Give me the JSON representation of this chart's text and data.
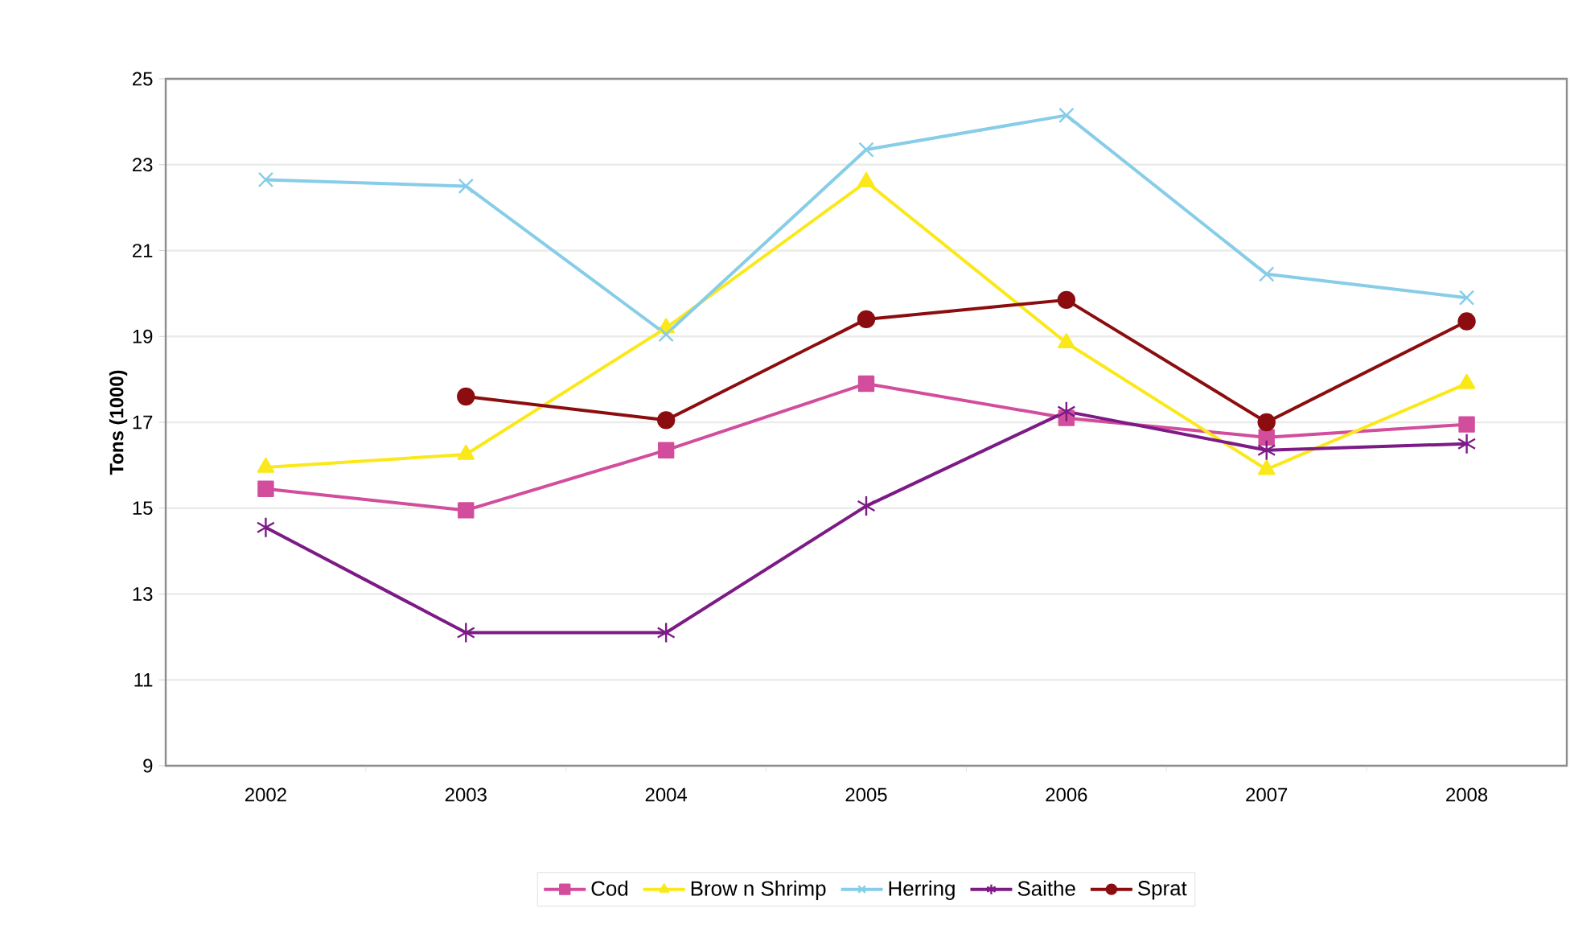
{
  "chart_data": {
    "type": "line",
    "ylabel": "Tons (1000)",
    "categories": [
      "2002",
      "2003",
      "2004",
      "2005",
      "2006",
      "2007",
      "2008"
    ],
    "series": [
      {
        "name": "Cod",
        "color": "#d24d9c",
        "marker": "square",
        "values": [
          15.45,
          14.95,
          16.35,
          17.9,
          17.1,
          16.65,
          16.95
        ]
      },
      {
        "name": "Brow n Shrimp",
        "color": "#fbe81a",
        "marker": "triangle",
        "values": [
          15.95,
          16.25,
          19.2,
          22.6,
          18.85,
          15.9,
          17.9
        ]
      },
      {
        "name": "Herring",
        "color": "#87cde8",
        "marker": "cross",
        "values": [
          22.65,
          22.5,
          19.05,
          23.35,
          24.15,
          20.45,
          19.9
        ]
      },
      {
        "name": "Saithe",
        "color": "#7c1a86",
        "marker": "cross",
        "values": [
          14.55,
          12.1,
          12.1,
          15.05,
          17.25,
          16.35,
          16.5
        ]
      },
      {
        "name": "Sprat",
        "color": "#8b0d0f",
        "marker": "circle",
        "values": [
          null,
          17.6,
          17.05,
          19.4,
          19.85,
          17.0,
          19.35
        ]
      }
    ],
    "ylim": [
      9,
      25
    ],
    "yticks": [
      9,
      11,
      13,
      15,
      17,
      19,
      21,
      23,
      25
    ],
    "grid": "y",
    "legend": "bottom",
    "line_style": "solid"
  }
}
